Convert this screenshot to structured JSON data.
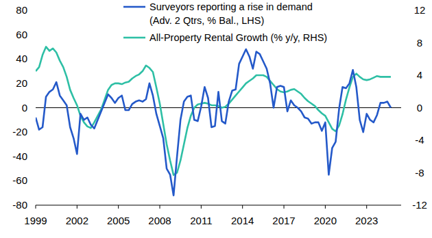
{
  "chart_data": {
    "type": "line",
    "x": [
      1999,
      1999.25,
      1999.5,
      1999.75,
      2000,
      2000.25,
      2000.5,
      2000.75,
      2001,
      2001.25,
      2001.5,
      2001.75,
      2002,
      2002.25,
      2002.5,
      2002.75,
      2003,
      2003.25,
      2003.5,
      2003.75,
      2004,
      2004.25,
      2004.5,
      2004.75,
      2005,
      2005.25,
      2005.5,
      2005.75,
      2006,
      2006.25,
      2006.5,
      2006.75,
      2007,
      2007.25,
      2007.5,
      2007.75,
      2008,
      2008.25,
      2008.5,
      2008.75,
      2009,
      2009.25,
      2009.5,
      2009.75,
      2010,
      2010.25,
      2010.5,
      2010.75,
      2011,
      2011.25,
      2011.5,
      2011.75,
      2012,
      2012.25,
      2012.5,
      2012.75,
      2013,
      2013.25,
      2013.5,
      2013.75,
      2014,
      2014.25,
      2014.5,
      2014.75,
      2015,
      2015.25,
      2015.5,
      2015.75,
      2016,
      2016.25,
      2016.5,
      2016.75,
      2017,
      2017.25,
      2017.5,
      2017.75,
      2018,
      2018.25,
      2018.5,
      2018.75,
      2019,
      2019.25,
      2019.5,
      2019.75,
      2020,
      2020.25,
      2020.5,
      2020.75,
      2021,
      2021.25,
      2021.5,
      2021.75,
      2022,
      2022.25,
      2022.5,
      2022.75,
      2023,
      2023.25,
      2023.5,
      2023.75,
      2024,
      2024.25,
      2024.5,
      2024.75
    ],
    "series": [
      {
        "name": "Surveyors reporting a rise in demand (Adv. 2 Qtrs, % Bal., LHS)",
        "color": "#2459c9",
        "axis": "y",
        "values": [
          -8,
          -18,
          -16,
          9,
          13,
          15,
          21,
          10,
          6,
          2,
          -16,
          -25,
          -38,
          -5,
          -10,
          -8,
          -14,
          -17,
          -10,
          -3,
          4,
          11,
          8,
          4,
          8,
          10,
          -2,
          -2,
          3,
          5,
          6,
          5,
          7,
          20,
          10,
          -5,
          -15,
          -25,
          -50,
          -55,
          -72,
          -40,
          -10,
          5,
          9,
          10,
          -10,
          -11,
          1,
          17,
          8,
          -16,
          -15,
          13,
          -11,
          -13,
          5,
          14,
          15,
          36,
          42,
          48,
          42,
          32,
          46,
          44,
          38,
          32,
          20,
          0,
          17,
          18,
          17,
          -3,
          6,
          2,
          0,
          -3,
          -8,
          -9,
          -13,
          -12,
          -12,
          -19,
          -12,
          -55,
          -33,
          -28,
          -1,
          17,
          16,
          20,
          31,
          17,
          -10,
          -20,
          -5,
          -10,
          -12,
          -6,
          4,
          4,
          5,
          0
        ]
      },
      {
        "name": "All-Property Rental Growth (% y/y, RHS)",
        "color": "#2ebfa5",
        "axis": "y2",
        "values": [
          4.5,
          5,
          6.5,
          7.5,
          7,
          7.3,
          6.8,
          5.8,
          5,
          3.8,
          2.2,
          1.2,
          0.3,
          -1,
          -1.8,
          -2.3,
          -2.5,
          -1.8,
          -1,
          -0.2,
          1,
          2.2,
          2.8,
          3,
          3,
          2.9,
          3.1,
          3.2,
          3.6,
          3.9,
          4.1,
          4.5,
          5.2,
          4.9,
          4.4,
          2.5,
          0.5,
          -2,
          -4.5,
          -6.5,
          -8.3,
          -8,
          -6.5,
          -4.5,
          -2.5,
          -1,
          0,
          0.4,
          0.5,
          0.6,
          0.5,
          0.3,
          0.3,
          0.2,
          0,
          0.1,
          0.5,
          1,
          1.5,
          2,
          2.5,
          3,
          3.3,
          3.6,
          4,
          4,
          4,
          3.8,
          3.3,
          2.8,
          2.3,
          2,
          1.9,
          2,
          2.2,
          2.3,
          2,
          1.7,
          1.2,
          0.8,
          0.5,
          0.2,
          -0.3,
          -0.7,
          -1,
          -1.8,
          -2.6,
          -2.9,
          -2.2,
          -0.8,
          1,
          2.5,
          3.8,
          4.2,
          3.8,
          3.5,
          3.4,
          3.5,
          3.7,
          3.9,
          3.8,
          3.8,
          3.8,
          3.8
        ]
      }
    ],
    "xlim": [
      1999,
      2025.5
    ],
    "xticks": [
      1999,
      2002,
      2005,
      2008,
      2011,
      2014,
      2017,
      2020,
      2023
    ],
    "ylim": [
      -80,
      80
    ],
    "yticks": [
      -80,
      -60,
      -40,
      -20,
      0,
      20,
      40,
      60,
      80
    ],
    "y2lim": [
      -12,
      12
    ],
    "y2ticks": [
      -12,
      -8,
      -4,
      0,
      4,
      8,
      12
    ],
    "grid": false,
    "legend": "top"
  }
}
